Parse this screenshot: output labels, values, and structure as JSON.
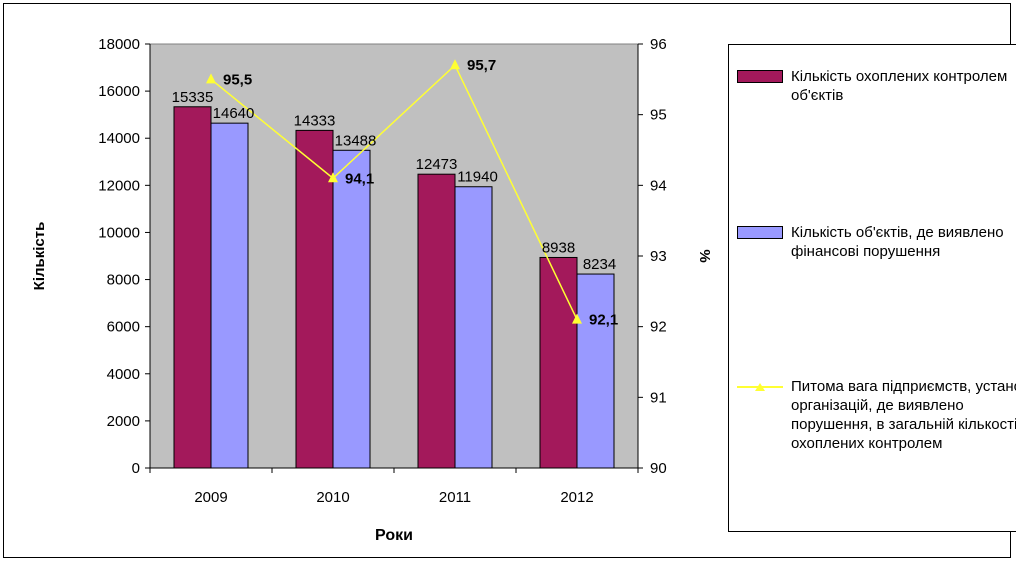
{
  "chart_data": {
    "type": "bar",
    "categories": [
      "2009",
      "2010",
      "2011",
      "2012"
    ],
    "xlabel": "Роки",
    "ylabel": "Кількість",
    "y2label": "%",
    "ylim": [
      0,
      18000
    ],
    "yticks": [
      0,
      2000,
      4000,
      6000,
      8000,
      10000,
      12000,
      14000,
      16000,
      18000
    ],
    "y2lim": [
      90,
      96
    ],
    "y2ticks": [
      90,
      91,
      92,
      93,
      94,
      95,
      96
    ],
    "plot_background": "#c0c0c0",
    "grid": false,
    "legend_position": "right",
    "series": [
      {
        "name": "Кількість охоплених контролем об'єктів",
        "type": "bar",
        "axis": "left",
        "color": "#a3195b",
        "values": [
          15335,
          14333,
          12473,
          8938
        ],
        "labels": [
          "15335",
          "14333",
          "12473",
          "8938"
        ]
      },
      {
        "name": "Кількість об'єктів, де виявлено фінансові порушення",
        "type": "bar",
        "axis": "left",
        "color": "#9999ff",
        "values": [
          14640,
          13488,
          11940,
          8234
        ],
        "labels": [
          "14640",
          "13488",
          "11940",
          "8234"
        ]
      },
      {
        "name": "Питома вага підприємств, установ організацій, де виявлено порушення, в загальній кількості охоплених контролем",
        "type": "line",
        "axis": "right",
        "color": "#ffff33",
        "values": [
          95.5,
          94.1,
          95.7,
          92.1
        ],
        "labels": [
          "95,5",
          "94,1",
          "95,7",
          "92,1"
        ]
      }
    ]
  }
}
